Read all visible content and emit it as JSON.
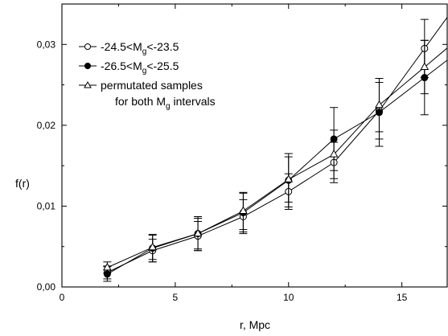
{
  "chart_data": {
    "type": "line",
    "xlabel": "r, Mpc",
    "ylabel": "f(r)",
    "xlim": [
      0,
      17
    ],
    "ylim": [
      0,
      0.035
    ],
    "x_ticks": [
      0,
      5,
      10,
      15
    ],
    "x_tick_labels": [
      "0",
      "5",
      "10",
      "15"
    ],
    "y_ticks": [
      0,
      0.01,
      0.02,
      0.03
    ],
    "y_tick_labels": [
      "0,00",
      "0,01",
      "0,02",
      "0,03"
    ],
    "grid": false,
    "legend_position": "top-left",
    "series": [
      {
        "name": "-24.5<Mg<-23.5",
        "name_parts": {
          "pre": "-24.5<M",
          "sub": "g",
          "post": "<-23.5"
        },
        "marker": "open-circle",
        "x": [
          2,
          4,
          6,
          8,
          10,
          12,
          14,
          16
        ],
        "y": [
          0.0018,
          0.0045,
          0.0063,
          0.0087,
          0.0118,
          0.0154,
          0.0218,
          0.0295
        ],
        "err": [
          0.0008,
          0.0014,
          0.0018,
          0.0021,
          0.0022,
          0.0025,
          0.0035,
          0.0036
        ]
      },
      {
        "name": "-26.5<Mg<-25.5",
        "name_parts": {
          "pre": "-26.5<M",
          "sub": "g",
          "post": "<-25.5"
        },
        "marker": "filled-circle",
        "x": [
          2,
          4,
          6,
          8,
          10,
          12,
          14,
          16
        ],
        "y": [
          0.0016,
          0.0048,
          0.0066,
          0.0092,
          0.0132,
          0.0183,
          0.0216,
          0.0259
        ],
        "err": [
          0.0009,
          0.0017,
          0.0021,
          0.0024,
          0.0033,
          0.0039,
          0.0042,
          0.0046
        ]
      },
      {
        "name": "permutated samples for both Mg intervals",
        "name_parts": {
          "line1": "permutated samples",
          "pre": "for both M",
          "sub": "g",
          "post": " intervals"
        },
        "marker": "open-triangle",
        "x": [
          2,
          4,
          6,
          8,
          10,
          12,
          14,
          16
        ],
        "y": [
          0.0024,
          0.0049,
          0.0066,
          0.0094,
          0.0133,
          0.0164,
          0.0225,
          0.0272
        ],
        "err": [
          0.0007,
          0.0015,
          0.0019,
          0.0023,
          0.0028,
          0.003,
          0.0033,
          0.0033
        ]
      }
    ]
  }
}
